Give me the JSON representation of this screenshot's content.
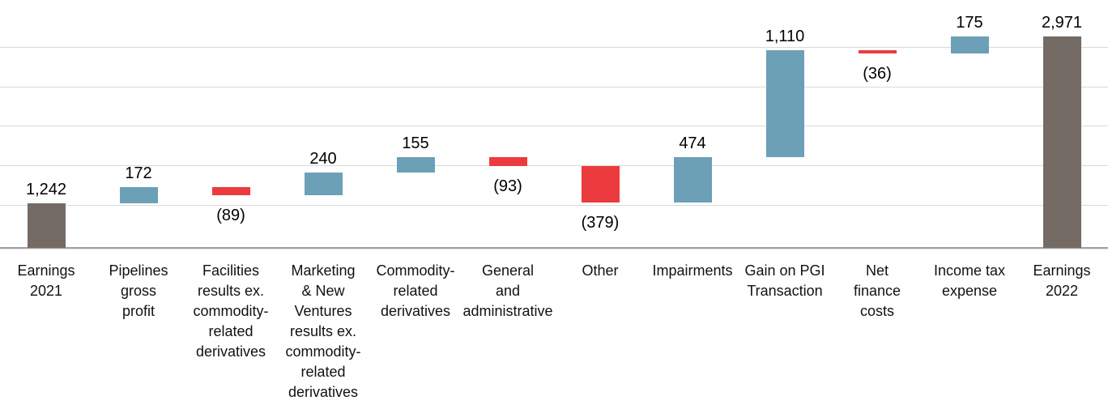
{
  "chart_data": {
    "type": "waterfall",
    "title": "",
    "legend": "none",
    "y_axis": {
      "tick_labels_visible": false,
      "gridlines": "horizontal",
      "gridline_count": 5
    },
    "categories": [
      "Earnings 2021",
      "Pipelines gross profit",
      "Facilities results ex. commodity-related derivatives",
      "Marketing & New Ventures results ex. commodity-related derivatives",
      "Commodity-related derivatives",
      "General and administrative",
      "Other",
      "Impairments",
      "Gain on PGI Transaction",
      "Net finance costs",
      "Income tax expense",
      "Earnings 2022"
    ],
    "steps": [
      {
        "category": "Earnings 2021",
        "label_lines": "Earnings\n2021",
        "value": 1242,
        "display": "1,242",
        "kind": "total"
      },
      {
        "category": "Pipelines gross profit",
        "label_lines": "Pipelines\ngross\nprofit",
        "value": 172,
        "display": "172",
        "kind": "increase"
      },
      {
        "category": "Facilities results ex. commodity-related derivatives",
        "label_lines": "Facilities\nresults ex.\ncommodity-\nrelated\nderivatives",
        "value": -89,
        "display": "(89)",
        "kind": "decrease"
      },
      {
        "category": "Marketing & New Ventures results ex. commodity-related derivatives",
        "label_lines": "Marketing\n& New\nVentures\nresults ex.\ncommodity-\nrelated\nderivatives",
        "value": 240,
        "display": "240",
        "kind": "increase"
      },
      {
        "category": "Commodity-related derivatives",
        "label_lines": "Commodity-\nrelated\nderivatives",
        "value": 155,
        "display": "155",
        "kind": "increase"
      },
      {
        "category": "General and administrative",
        "label_lines": "General\nand\nadministrative",
        "value": -93,
        "display": "(93)",
        "kind": "decrease"
      },
      {
        "category": "Other",
        "label_lines": "Other",
        "value": -379,
        "display": "(379)",
        "kind": "decrease"
      },
      {
        "category": "Impairments",
        "label_lines": "Impairments",
        "value": 474,
        "display": "474",
        "kind": "increase"
      },
      {
        "category": "Gain on PGI Transaction",
        "label_lines": "Gain on PGI\nTransaction",
        "value": 1110,
        "display": "1,110",
        "kind": "increase"
      },
      {
        "category": "Net finance costs",
        "label_lines": "Net\nfinance\ncosts",
        "value": -36,
        "display": "(36)",
        "kind": "decrease"
      },
      {
        "category": "Income tax expense",
        "label_lines": "Income tax\nexpense",
        "value": 175,
        "display": "175",
        "kind": "increase"
      },
      {
        "category": "Earnings 2022",
        "label_lines": "Earnings\n2022",
        "value": 2971,
        "display": "2,971",
        "kind": "total"
      }
    ],
    "cumulative_levels": [
      1242,
      1414,
      1325,
      1565,
      1720,
      1627,
      1248,
      1722,
      2832,
      2796,
      2971,
      2971
    ],
    "colors": {
      "increase": "#6CA0B6",
      "decrease": "#EC3B3E",
      "total": "#756B65",
      "gridline": "#D9D9D9",
      "axis_line": "#A0A0A0",
      "label_text": "#000000"
    }
  }
}
